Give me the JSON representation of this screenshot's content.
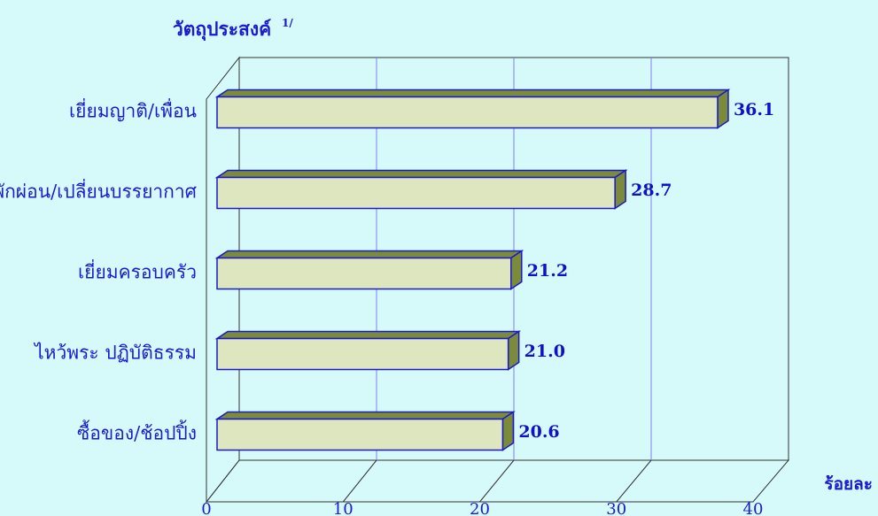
{
  "chart_data": {
    "type": "bar3d",
    "orientation": "horizontal",
    "title": "วัตถุประสงค์",
    "title_note": "1/",
    "x_label": "ร้อยละ",
    "categories": [
      "เยี่ยมญาติ/เพื่อน",
      "พักผ่อน/เปลี่ยนบรรยากาศ",
      "เยี่ยมครอบครัว",
      "ไหว้พระ ปฏิบัติธรรม",
      "ซื้อของ/ช้อปปิ้ง"
    ],
    "values": [
      36.1,
      28.7,
      21.2,
      21.0,
      20.6
    ],
    "value_labels": [
      "36.1",
      "28.7",
      "21.2",
      "21.0",
      "20.6"
    ],
    "color": "#dde6bf",
    "shade_color": "#7b8b3a",
    "edge_color": "#1a1acc",
    "xlim": [
      0,
      40
    ],
    "xticks": [
      0,
      10,
      20,
      30,
      40
    ],
    "grid": true
  }
}
